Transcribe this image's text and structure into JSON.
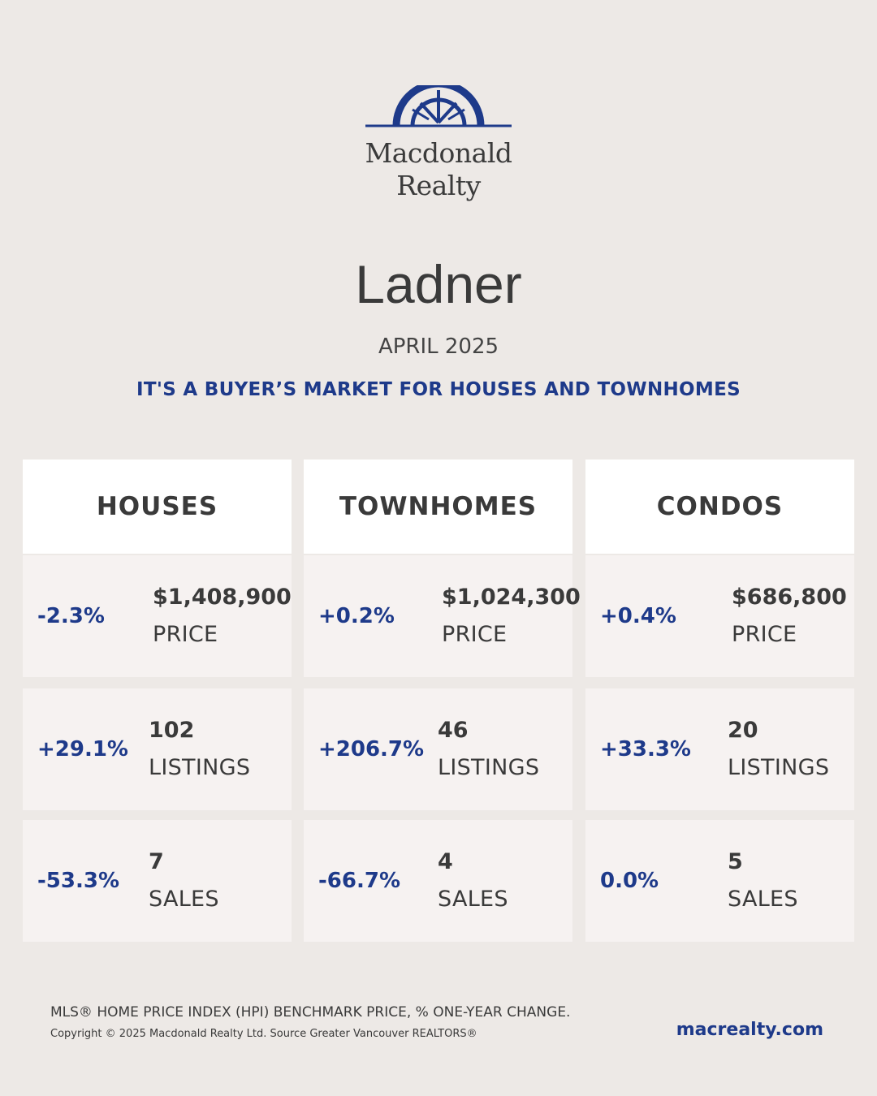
{
  "brand": {
    "line1": "Macdonald",
    "line2": "Realty",
    "color": "#1e3a8a",
    "logo_icon": "arch-logo-icon"
  },
  "city": "Ladner",
  "month": "APRIL 2025",
  "tagline": "IT'S A BUYER’S MARKET FOR HOUSES AND TOWNHOMES",
  "columns": [
    {
      "title": "HOUSES",
      "rows": [
        {
          "pct": "-2.3%",
          "value": "$1,408,900",
          "label": "PRICE"
        },
        {
          "pct": "+29.1%",
          "value": "102",
          "label": "LISTINGS"
        },
        {
          "pct": "-53.3%",
          "value": "7",
          "label": "SALES"
        }
      ]
    },
    {
      "title": "TOWNHOMES",
      "rows": [
        {
          "pct": "+0.2%",
          "value": "$1,024,300",
          "label": "PRICE"
        },
        {
          "pct": "+206.7%",
          "value": "46",
          "label": "LISTINGS"
        },
        {
          "pct": "-66.7%",
          "value": "4",
          "label": "SALES"
        }
      ]
    },
    {
      "title": "CONDOS",
      "rows": [
        {
          "pct": "+0.4%",
          "value": "$686,800",
          "label": "PRICE"
        },
        {
          "pct": "+33.3%",
          "value": "20",
          "label": "LISTINGS"
        },
        {
          "pct": "0.0%",
          "value": "5",
          "label": "SALES"
        }
      ]
    }
  ],
  "footer": {
    "note": "MLS® HOME PRICE INDEX (HPI) BENCHMARK PRICE, % ONE-YEAR CHANGE.",
    "copyright": "Copyright © 2025 Macdonald Realty Ltd. Source Greater Vancouver REALTORS®",
    "website": "macrealty.com"
  }
}
